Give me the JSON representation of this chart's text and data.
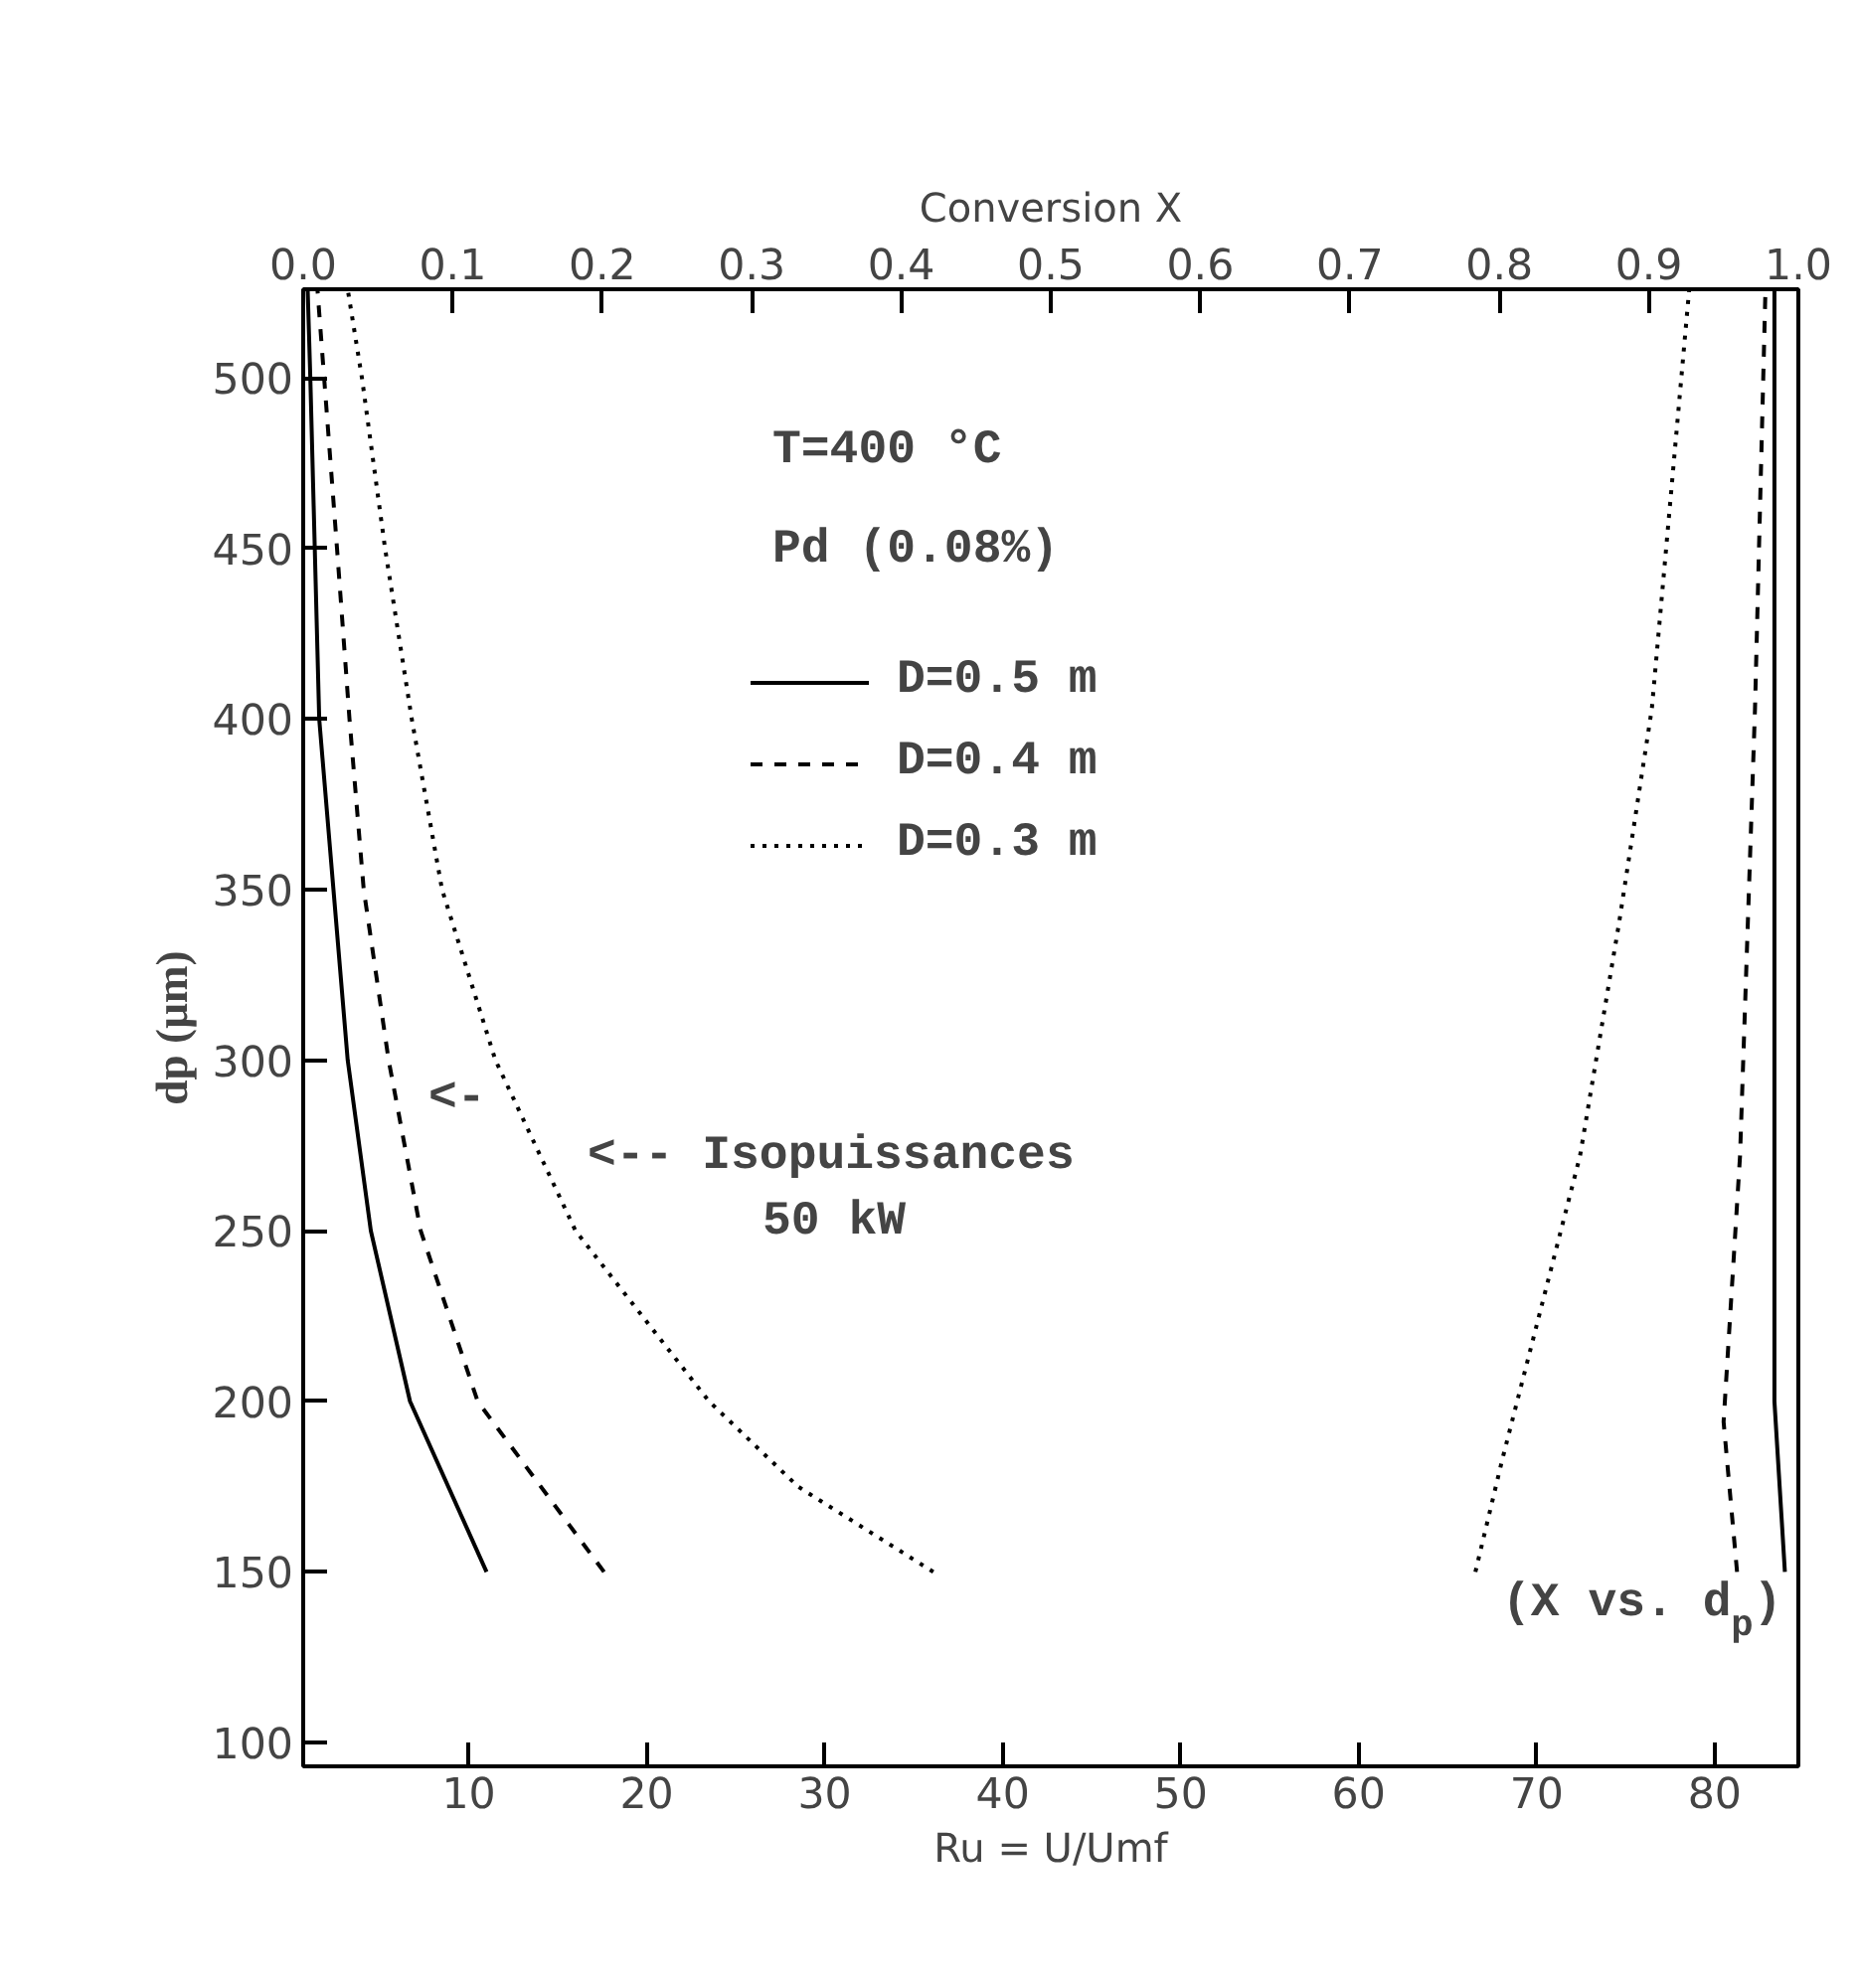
{
  "chart_data": {
    "type": "line",
    "xlabel": "Ru = U/Umf",
    "x2label": "Conversion X",
    "ylabel": "dp (μm)",
    "xlim": [
      0.7,
      84.7
    ],
    "xticks": [
      10,
      20,
      30,
      40,
      50,
      60,
      70,
      80
    ],
    "x2lim": [
      0,
      1
    ],
    "x2ticks": [
      {
        "value": 0,
        "label": "0.0"
      },
      0.1,
      0.2,
      0.3,
      0.4,
      0.5,
      0.6,
      0.7,
      0.8,
      0.9,
      {
        "value": 1,
        "label": "1.0"
      }
    ],
    "ylim": [
      93,
      526
    ],
    "yticks": [
      100,
      150,
      200,
      250,
      300,
      350,
      400,
      450,
      500
    ],
    "grid": false,
    "legend": "top",
    "marker": "none",
    "series": [
      {
        "name": "D=0.5 m",
        "color": "#000000",
        "line_style": "solid",
        "x": [
          11,
          6.7,
          4.5,
          3.2,
          2.4,
          1.6,
          1.1,
          0.95
        ],
        "values": [
          150,
          200,
          250,
          300,
          350,
          400,
          500,
          526
        ]
      },
      {
        "name": "D=0.4 m",
        "color": "#000000",
        "line_style": "dashed",
        "x": [
          17.6,
          10.5,
          7.3,
          5.5,
          4.1,
          3.3,
          2.6,
          1.5
        ],
        "values": [
          150,
          200,
          250,
          300,
          350,
          400,
          450,
          526
        ]
      },
      {
        "name": "D=0.3 m",
        "color": "#000000",
        "line_style": "dotted",
        "x": [
          36.1,
          28.5,
          23.5,
          16,
          11.5,
          8.5,
          6.8,
          5.3,
          4,
          3.2
        ],
        "values": [
          150,
          175,
          200,
          250,
          300,
          350,
          400,
          450,
          500,
          526
        ]
      },
      {
        "color": "#000000",
        "line_style": "solid",
        "axis": "x2",
        "x": [
          0.991,
          0.984,
          0.984
        ],
        "values": [
          150,
          200,
          526
        ]
      },
      {
        "color": "#000000",
        "line_style": "dashed",
        "axis": "x2",
        "x": [
          0.959,
          0.95,
          0.961,
          0.971,
          0.978
        ],
        "values": [
          150,
          194,
          272,
          403,
          526
        ]
      },
      {
        "color": "#000000",
        "line_style": "dotted",
        "axis": "x2",
        "x": [
          0.784,
          0.802,
          0.854,
          0.88,
          0.902,
          0.927
        ],
        "values": [
          150,
          183,
          272,
          340,
          403,
          526
        ]
      }
    ],
    "annotations": [
      "T=400 °C",
      "Pd (0.08%)",
      "<-",
      "<-- Isopuissances",
      "50 kW",
      "(X vs. d$_{p}$)"
    ]
  }
}
